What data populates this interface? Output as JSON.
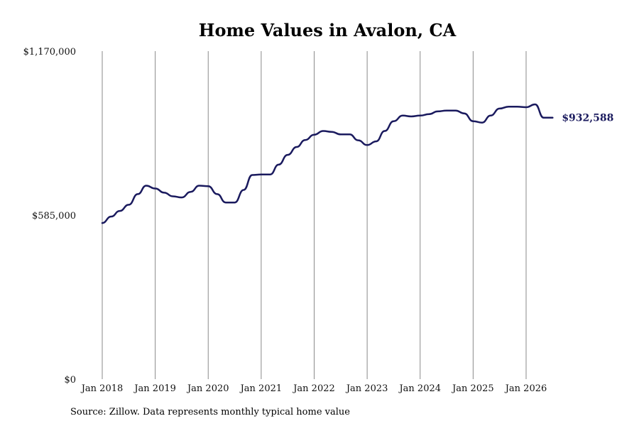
{
  "chart_data": {
    "type": "line",
    "title": "Home Values in Avalon, CA",
    "xlabel": "",
    "ylabel": "",
    "ylim": [
      0,
      1170000
    ],
    "y_ticks": [
      {
        "value": 0,
        "label": "$0"
      },
      {
        "value": 585000,
        "label": "$585,000"
      },
      {
        "value": 1170000,
        "label": "$1,170,000"
      }
    ],
    "x_ticks": [
      {
        "value": 2018,
        "label": "Jan 2018"
      },
      {
        "value": 2019,
        "label": "Jan 2019"
      },
      {
        "value": 2020,
        "label": "Jan 2020"
      },
      {
        "value": 2021,
        "label": "Jan 2021"
      },
      {
        "value": 2022,
        "label": "Jan 2022"
      },
      {
        "value": 2023,
        "label": "Jan 2023"
      },
      {
        "value": 2024,
        "label": "Jan 2024"
      },
      {
        "value": 2025,
        "label": "Jan 2025"
      },
      {
        "value": 2026,
        "label": "Jan 2026"
      }
    ],
    "xlim": [
      2018,
      2026.5
    ],
    "grid": "vertical at year ticks",
    "legend": "none",
    "line_color": "#1a1a5e",
    "end_label": "$932,588",
    "series": [
      {
        "x": [
          2018.0,
          2018.17,
          2018.33,
          2018.5,
          2018.67,
          2018.83,
          2019.0,
          2019.17,
          2019.33,
          2019.5,
          2019.67,
          2019.83,
          2020.0,
          2020.17,
          2020.33,
          2020.5,
          2020.67,
          2020.83,
          2021.0,
          2021.17,
          2021.33,
          2021.5,
          2021.67,
          2021.83,
          2022.0,
          2022.17,
          2022.33,
          2022.5,
          2022.67,
          2022.83,
          2023.0,
          2023.17,
          2023.33,
          2023.5,
          2023.67,
          2023.83,
          2024.0,
          2024.17,
          2024.33,
          2024.5,
          2024.67,
          2024.83,
          2025.0,
          2025.17,
          2025.33,
          2025.5,
          2025.67,
          2025.83,
          2026.0,
          2026.17,
          2026.33,
          2026.5
        ],
        "y": [
          557000,
          580000,
          600000,
          622000,
          660000,
          690000,
          680000,
          665000,
          652000,
          648000,
          668000,
          690000,
          688000,
          660000,
          630000,
          630000,
          675000,
          728000,
          730000,
          730000,
          765000,
          800000,
          828000,
          853000,
          872000,
          885000,
          882000,
          873000,
          873000,
          852000,
          835000,
          848000,
          885000,
          920000,
          940000,
          937000,
          940000,
          945000,
          955000,
          958000,
          958000,
          948000,
          920000,
          915000,
          940000,
          965000,
          972000,
          972000,
          970000,
          980000,
          932588,
          932588
        ]
      }
    ]
  },
  "source": "Source: Zillow. Data represents monthly typical home value"
}
